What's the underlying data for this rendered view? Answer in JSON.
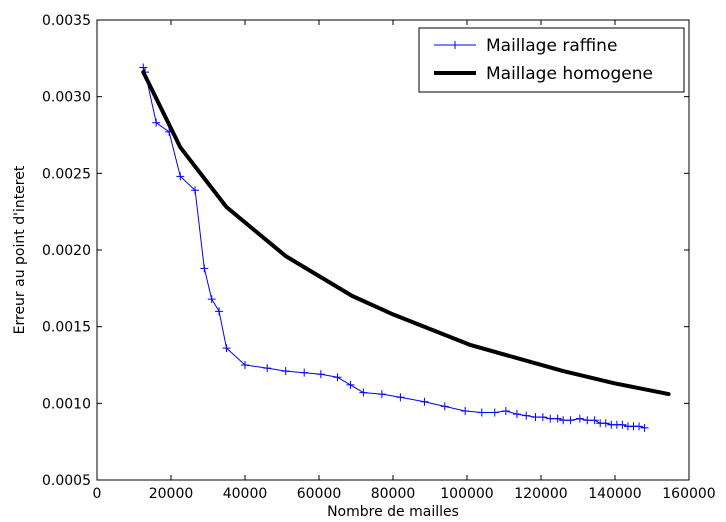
{
  "chart_data": {
    "type": "line",
    "title": "",
    "xlabel": "Nombre de mailles",
    "ylabel": "Erreur au point d'interet",
    "xlim": [
      0,
      160000
    ],
    "ylim": [
      0.0005,
      0.0035
    ],
    "grid": false,
    "legend_position": "top-right",
    "x_ticks": [
      {
        "value": 0,
        "label": "0"
      },
      {
        "value": 20000,
        "label": "20000"
      },
      {
        "value": 40000,
        "label": "40000"
      },
      {
        "value": 60000,
        "label": "60000"
      },
      {
        "value": 80000,
        "label": "80000"
      },
      {
        "value": 100000,
        "label": "100000"
      },
      {
        "value": 120000,
        "label": "120000"
      },
      {
        "value": 140000,
        "label": "140000"
      },
      {
        "value": 160000,
        "label": "160000"
      }
    ],
    "y_ticks": [
      {
        "value": 0.0005,
        "label": "0.0005"
      },
      {
        "value": 0.001,
        "label": "0.0010"
      },
      {
        "value": 0.0015,
        "label": "0.0015"
      },
      {
        "value": 0.002,
        "label": "0.0020"
      },
      {
        "value": 0.0025,
        "label": "0.0025"
      },
      {
        "value": 0.003,
        "label": "0.0030"
      },
      {
        "value": 0.0035,
        "label": "0.0035"
      }
    ],
    "series": [
      {
        "name": "Maillage raffine",
        "color": "#0000ff",
        "style": "thin-line-plus-markers",
        "x": [
          12500,
          13000,
          16000,
          19500,
          22500,
          26500,
          29000,
          31000,
          33000,
          35000,
          40000,
          46000,
          51000,
          56000,
          60500,
          65000,
          68500,
          72000,
          77000,
          82000,
          88500,
          94000,
          99500,
          104000,
          107500,
          110500,
          113500,
          116000,
          118500,
          120500,
          122500,
          124500,
          126000,
          128000,
          130500,
          132500,
          134500,
          136000,
          137500,
          139000,
          140500,
          142000,
          143500,
          145000,
          146500,
          148000
        ],
        "y": [
          0.00319,
          0.00316,
          0.00283,
          0.00277,
          0.00248,
          0.00239,
          0.00188,
          0.00168,
          0.0016,
          0.00136,
          0.00125,
          0.00123,
          0.00121,
          0.0012,
          0.00119,
          0.00117,
          0.00112,
          0.00107,
          0.00106,
          0.00104,
          0.00101,
          0.00098,
          0.00095,
          0.00094,
          0.00094,
          0.00095,
          0.00093,
          0.00092,
          0.00091,
          0.00091,
          0.0009,
          0.0009,
          0.00089,
          0.00089,
          0.0009,
          0.00089,
          0.00089,
          0.00087,
          0.00087,
          0.00086,
          0.00086,
          0.00086,
          0.00085,
          0.00085,
          0.00085,
          0.00084
        ]
      },
      {
        "name": "Maillage homogene",
        "color": "#000000",
        "style": "thick-line",
        "x": [
          12500,
          22500,
          35000,
          51000,
          69000,
          80000,
          101000,
          126000,
          140000,
          154500
        ],
        "y": [
          0.00316,
          0.00267,
          0.00228,
          0.00196,
          0.0017,
          0.00158,
          0.00138,
          0.00121,
          0.00113,
          0.00106
        ]
      }
    ]
  }
}
